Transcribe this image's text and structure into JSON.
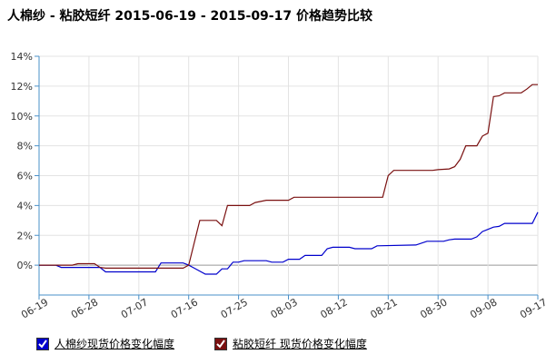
{
  "title": "人棉纱 - 粘胶短纤 2015-06-19 - 2015-09-17 价格趋势比较",
  "chart_data": {
    "type": "line",
    "title": "人棉纱 - 粘胶短纤 2015-06-19 - 2015-09-17 价格趋势比较",
    "x_ticks": [
      "06-19",
      "06-28",
      "07-07",
      "07-16",
      "07-25",
      "08-03",
      "08-12",
      "08-21",
      "08-30",
      "09-08",
      "09-17"
    ],
    "y_ticks": [
      "0%",
      "2%",
      "4%",
      "6%",
      "8%",
      "10%",
      "12%",
      "14%"
    ],
    "xlim": [
      "2015-06-19",
      "2015-09-17"
    ],
    "ylim": [
      -2,
      14
    ],
    "grid": true,
    "legend_position": "bottom-left",
    "series": [
      {
        "name": "人棉纱现货价格变化幅度",
        "color": "#0000cc",
        "points": [
          [
            "2015-06-19",
            0
          ],
          [
            "2015-06-22",
            0
          ],
          [
            "2015-06-23",
            -0.15
          ],
          [
            "2015-06-30",
            -0.15
          ],
          [
            "2015-07-01",
            -0.45
          ],
          [
            "2015-07-08",
            -0.45
          ],
          [
            "2015-07-09",
            -0.45
          ],
          [
            "2015-07-10",
            -0.45
          ],
          [
            "2015-07-11",
            0.15
          ],
          [
            "2015-07-15",
            0.15
          ],
          [
            "2015-07-16",
            0
          ],
          [
            "2015-07-17",
            -0.2
          ],
          [
            "2015-07-19",
            -0.6
          ],
          [
            "2015-07-21",
            -0.6
          ],
          [
            "2015-07-22",
            -0.25
          ],
          [
            "2015-07-23",
            -0.25
          ],
          [
            "2015-07-24",
            0.2
          ],
          [
            "2015-07-25",
            0.2
          ],
          [
            "2015-07-26",
            0.3
          ],
          [
            "2015-07-30",
            0.3
          ],
          [
            "2015-07-31",
            0.2
          ],
          [
            "2015-08-02",
            0.2
          ],
          [
            "2015-08-03",
            0.4
          ],
          [
            "2015-08-05",
            0.4
          ],
          [
            "2015-08-06",
            0.65
          ],
          [
            "2015-08-09",
            0.65
          ],
          [
            "2015-08-10",
            1.1
          ],
          [
            "2015-08-11",
            1.2
          ],
          [
            "2015-08-14",
            1.2
          ],
          [
            "2015-08-15",
            1.1
          ],
          [
            "2015-08-18",
            1.1
          ],
          [
            "2015-08-19",
            1.3
          ],
          [
            "2015-08-26",
            1.35
          ],
          [
            "2015-08-28",
            1.6
          ],
          [
            "2015-08-31",
            1.6
          ],
          [
            "2015-09-01",
            1.7
          ],
          [
            "2015-09-02",
            1.75
          ],
          [
            "2015-09-05",
            1.75
          ],
          [
            "2015-09-06",
            1.9
          ],
          [
            "2015-09-07",
            2.25
          ],
          [
            "2015-09-09",
            2.55
          ],
          [
            "2015-09-10",
            2.6
          ],
          [
            "2015-09-11",
            2.8
          ],
          [
            "2015-09-16",
            2.8
          ],
          [
            "2015-09-17",
            3.55
          ]
        ]
      },
      {
        "name": "粘胶短纤 现货价格变化幅度",
        "color": "#7a1010",
        "points": [
          [
            "2015-06-19",
            0
          ],
          [
            "2015-06-25",
            0
          ],
          [
            "2015-06-26",
            0.1
          ],
          [
            "2015-06-28",
            0.1
          ],
          [
            "2015-06-29",
            0.1
          ],
          [
            "2015-06-30",
            -0.15
          ],
          [
            "2015-07-01",
            -0.2
          ],
          [
            "2015-07-15",
            -0.2
          ],
          [
            "2015-07-16",
            0
          ],
          [
            "2015-07-17",
            1.5
          ],
          [
            "2015-07-18",
            3.0
          ],
          [
            "2015-07-21",
            3.0
          ],
          [
            "2015-07-22",
            2.65
          ],
          [
            "2015-07-23",
            4.0
          ],
          [
            "2015-07-27",
            4.0
          ],
          [
            "2015-07-28",
            4.2
          ],
          [
            "2015-07-30",
            4.35
          ],
          [
            "2015-08-03",
            4.35
          ],
          [
            "2015-08-04",
            4.55
          ],
          [
            "2015-08-20",
            4.55
          ],
          [
            "2015-08-21",
            6.0
          ],
          [
            "2015-08-22",
            6.35
          ],
          [
            "2015-08-29",
            6.35
          ],
          [
            "2015-08-30",
            6.4
          ],
          [
            "2015-09-01",
            6.45
          ],
          [
            "2015-09-02",
            6.6
          ],
          [
            "2015-09-03",
            7.1
          ],
          [
            "2015-09-04",
            8.0
          ],
          [
            "2015-09-06",
            8.0
          ],
          [
            "2015-09-07",
            8.65
          ],
          [
            "2015-09-08",
            8.85
          ],
          [
            "2015-09-09",
            11.3
          ],
          [
            "2015-09-10",
            11.35
          ],
          [
            "2015-09-11",
            11.55
          ],
          [
            "2015-09-14",
            11.55
          ],
          [
            "2015-09-15",
            11.8
          ],
          [
            "2015-09-16",
            12.1
          ],
          [
            "2015-09-17",
            12.1
          ]
        ]
      }
    ]
  }
}
